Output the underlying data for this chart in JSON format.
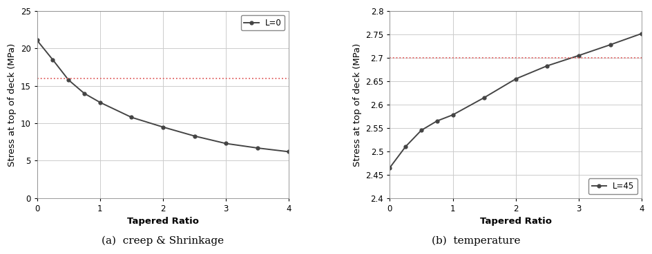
{
  "left_x": [
    0,
    0.25,
    0.5,
    0.75,
    1.0,
    1.5,
    2.0,
    2.5,
    3.0,
    3.5,
    4.0
  ],
  "left_y": [
    21.1,
    18.5,
    15.8,
    14.0,
    12.8,
    10.8,
    9.5,
    8.3,
    7.3,
    6.7,
    6.2
  ],
  "left_hline": 16.0,
  "left_ylim": [
    0,
    25
  ],
  "left_yticks": [
    0,
    5,
    10,
    15,
    20,
    25
  ],
  "left_ylabel": "Stress at top of deck (MPa)",
  "left_xlabel": "Tapered Ratio",
  "left_legend": "L=0",
  "left_caption": "(a)  creep & Shrinkage",
  "right_x": [
    0,
    0.25,
    0.5,
    0.75,
    1.0,
    1.5,
    2.0,
    2.5,
    3.0,
    3.5,
    4.0
  ],
  "right_y": [
    2.465,
    2.51,
    2.545,
    2.565,
    2.578,
    2.615,
    2.655,
    2.683,
    2.705,
    2.728,
    2.752
  ],
  "right_hline": 2.7,
  "right_ylim": [
    2.4,
    2.8
  ],
  "right_yticks": [
    2.4,
    2.45,
    2.5,
    2.55,
    2.6,
    2.65,
    2.7,
    2.75,
    2.8
  ],
  "right_ytick_labels": [
    "2.4",
    "2.45",
    "2.5",
    "2.55",
    "2.6",
    "2.65",
    "2.7",
    "2.75",
    "2.8"
  ],
  "right_ylabel": "Stress at top of deck (MPa)",
  "right_xlabel": "Tapered Ratio",
  "right_legend": "L=45",
  "right_caption": "(b)  temperature",
  "line_color": "#444444",
  "hline_color": "#e06060",
  "marker": "o",
  "marker_size": 3.5,
  "line_width": 1.4,
  "grid_color": "#cccccc",
  "caption_fontsize": 11,
  "axis_label_fontsize": 9.5,
  "tick_fontsize": 8.5,
  "legend_fontsize": 8.5
}
